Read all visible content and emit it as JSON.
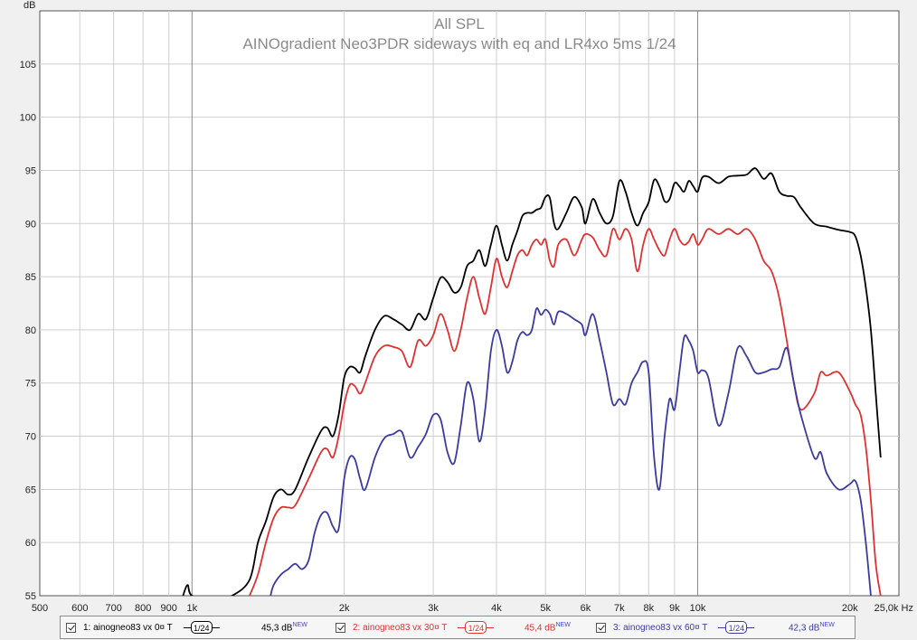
{
  "chart_data": {
    "type": "line",
    "title": "All SPL",
    "subtitle": "AINOgradient Neo3PDR sideways with eq and LR4xo 5ms 1/24",
    "ylabel": "dB",
    "xlabel": "Hz",
    "xscale": "log",
    "xlim": [
      500,
      25000
    ],
    "ylim": [
      55,
      110
    ],
    "grid": true,
    "y_ticks": [
      "105",
      "100",
      "95",
      "90",
      "85",
      "80",
      "75",
      "70",
      "65",
      "60",
      "55"
    ],
    "x_ticks": [
      {
        "v": 500,
        "label": "500"
      },
      {
        "v": 600,
        "label": "600"
      },
      {
        "v": 700,
        "label": "700"
      },
      {
        "v": 800,
        "label": "800"
      },
      {
        "v": 900,
        "label": "900"
      },
      {
        "v": 1000,
        "label": "1k"
      },
      {
        "v": 2000,
        "label": "2k"
      },
      {
        "v": 3000,
        "label": "3k"
      },
      {
        "v": 4000,
        "label": "4k"
      },
      {
        "v": 5000,
        "label": "5k"
      },
      {
        "v": 6000,
        "label": "6k"
      },
      {
        "v": 7000,
        "label": "7k"
      },
      {
        "v": 8000,
        "label": "8k"
      },
      {
        "v": 9000,
        "label": "9k"
      },
      {
        "v": 10000,
        "label": "10k"
      },
      {
        "v": 20000,
        "label": "20k"
      },
      {
        "v": 25000,
        "label": "25,0k Hz"
      }
    ],
    "series": [
      {
        "name": "1: ainogneo83 vx 0¤ T",
        "color": "#000000",
        "smoothing": "1/24",
        "level": "45,3 dB",
        "points": [
          [
            960,
            55
          ],
          [
            980,
            56
          ],
          [
            1000,
            55
          ],
          [
            1100,
            54.5
          ],
          [
            1200,
            55
          ],
          [
            1300,
            56.5
          ],
          [
            1350,
            60
          ],
          [
            1400,
            62
          ],
          [
            1450,
            64.3
          ],
          [
            1500,
            65
          ],
          [
            1550,
            64.5
          ],
          [
            1600,
            65
          ],
          [
            1700,
            68
          ],
          [
            1800,
            70.5
          ],
          [
            1850,
            70.8
          ],
          [
            1900,
            70
          ],
          [
            1950,
            72
          ],
          [
            2000,
            75.5
          ],
          [
            2050,
            76.5
          ],
          [
            2100,
            76.4
          ],
          [
            2150,
            76
          ],
          [
            2200,
            77.5
          ],
          [
            2300,
            80
          ],
          [
            2400,
            81.3
          ],
          [
            2500,
            81
          ],
          [
            2600,
            80.5
          ],
          [
            2700,
            80
          ],
          [
            2800,
            81.5
          ],
          [
            2900,
            81
          ],
          [
            3000,
            83
          ],
          [
            3100,
            84.9
          ],
          [
            3200,
            84.5
          ],
          [
            3300,
            83.5
          ],
          [
            3400,
            84
          ],
          [
            3500,
            86
          ],
          [
            3600,
            86.5
          ],
          [
            3700,
            87.5
          ],
          [
            3800,
            86
          ],
          [
            3900,
            88
          ],
          [
            4000,
            89.8
          ],
          [
            4100,
            88
          ],
          [
            4200,
            86.5
          ],
          [
            4300,
            88
          ],
          [
            4400,
            89.3
          ],
          [
            4500,
            90.7
          ],
          [
            4600,
            91
          ],
          [
            4700,
            91
          ],
          [
            4800,
            91.3
          ],
          [
            4900,
            91.5
          ],
          [
            5000,
            92.5
          ],
          [
            5100,
            92.4
          ],
          [
            5200,
            90
          ],
          [
            5300,
            89.5
          ],
          [
            5500,
            91
          ],
          [
            5700,
            92.5
          ],
          [
            5900,
            91.5
          ],
          [
            6000,
            90
          ],
          [
            6200,
            92.3
          ],
          [
            6400,
            91
          ],
          [
            6600,
            90
          ],
          [
            6800,
            90.7
          ],
          [
            7000,
            94
          ],
          [
            7200,
            93
          ],
          [
            7400,
            91
          ],
          [
            7600,
            89.8
          ],
          [
            7800,
            91
          ],
          [
            8000,
            92
          ],
          [
            8200,
            94.1
          ],
          [
            8400,
            93.5
          ],
          [
            8600,
            92.1
          ],
          [
            8800,
            92.3
          ],
          [
            9000,
            93.8
          ],
          [
            9200,
            93.5
          ],
          [
            9400,
            93
          ],
          [
            9600,
            94
          ],
          [
            9800,
            93.5
          ],
          [
            10000,
            93
          ],
          [
            10200,
            94.3
          ],
          [
            10500,
            94.4
          ],
          [
            11000,
            93.8
          ],
          [
            11500,
            94.4
          ],
          [
            12000,
            94.5
          ],
          [
            12500,
            94.6
          ],
          [
            13000,
            95.2
          ],
          [
            13500,
            94.2
          ],
          [
            14000,
            94.7
          ],
          [
            14500,
            93
          ],
          [
            15000,
            92.6
          ],
          [
            15500,
            92.5
          ],
          [
            16000,
            91.5
          ],
          [
            17000,
            90
          ],
          [
            18000,
            89.7
          ],
          [
            19000,
            89.4
          ],
          [
            20000,
            89.2
          ],
          [
            20500,
            88.8
          ],
          [
            21000,
            87
          ],
          [
            21500,
            84
          ],
          [
            22000,
            80
          ],
          [
            22500,
            74
          ],
          [
            23000,
            68
          ]
        ]
      },
      {
        "name": "2: ainogneo83 vx 30¤ T",
        "color": "#e03030",
        "smoothing": "1/24",
        "level": "45,4 dB",
        "points": [
          [
            1300,
            55
          ],
          [
            1350,
            57
          ],
          [
            1400,
            60
          ],
          [
            1450,
            62.3
          ],
          [
            1500,
            63.3
          ],
          [
            1550,
            63.3
          ],
          [
            1600,
            63.5
          ],
          [
            1700,
            66
          ],
          [
            1800,
            68.5
          ],
          [
            1850,
            68.8
          ],
          [
            1900,
            68
          ],
          [
            1950,
            70
          ],
          [
            2000,
            73
          ],
          [
            2050,
            74.8
          ],
          [
            2100,
            74.7
          ],
          [
            2150,
            74
          ],
          [
            2200,
            75
          ],
          [
            2300,
            77.5
          ],
          [
            2400,
            78.5
          ],
          [
            2500,
            78.4
          ],
          [
            2600,
            78
          ],
          [
            2700,
            76.5
          ],
          [
            2800,
            79
          ],
          [
            2900,
            78.5
          ],
          [
            3000,
            79.5
          ],
          [
            3100,
            81.5
          ],
          [
            3200,
            80
          ],
          [
            3300,
            78
          ],
          [
            3400,
            80
          ],
          [
            3500,
            83
          ],
          [
            3600,
            85
          ],
          [
            3700,
            83
          ],
          [
            3800,
            81.5
          ],
          [
            3900,
            84
          ],
          [
            4000,
            86.7
          ],
          [
            4100,
            85
          ],
          [
            4200,
            84
          ],
          [
            4300,
            85.5
          ],
          [
            4400,
            87
          ],
          [
            4500,
            87.5
          ],
          [
            4600,
            87
          ],
          [
            4700,
            88
          ],
          [
            4800,
            88.5
          ],
          [
            4900,
            88
          ],
          [
            5000,
            88.5
          ],
          [
            5100,
            86.5
          ],
          [
            5200,
            86
          ],
          [
            5300,
            88
          ],
          [
            5500,
            88.5
          ],
          [
            5700,
            87
          ],
          [
            5900,
            88.5
          ],
          [
            6000,
            89
          ],
          [
            6200,
            88.7
          ],
          [
            6400,
            87.5
          ],
          [
            6600,
            87
          ],
          [
            6800,
            89.5
          ],
          [
            7000,
            88.5
          ],
          [
            7200,
            89.5
          ],
          [
            7400,
            88.5
          ],
          [
            7600,
            85.5
          ],
          [
            7800,
            88
          ],
          [
            8000,
            89.5
          ],
          [
            8200,
            88.5
          ],
          [
            8400,
            87.5
          ],
          [
            8600,
            87
          ],
          [
            8800,
            88.5
          ],
          [
            9000,
            89.5
          ],
          [
            9200,
            88.5
          ],
          [
            9400,
            88
          ],
          [
            9600,
            88.3
          ],
          [
            9800,
            89
          ],
          [
            10000,
            88
          ],
          [
            10200,
            88.5
          ],
          [
            10500,
            89.5
          ],
          [
            11000,
            89
          ],
          [
            11500,
            89.5
          ],
          [
            12000,
            89
          ],
          [
            12500,
            89.5
          ],
          [
            13000,
            88.5
          ],
          [
            13500,
            86.5
          ],
          [
            14000,
            85.5
          ],
          [
            14500,
            83
          ],
          [
            15000,
            79
          ],
          [
            15500,
            75
          ],
          [
            16000,
            72.5
          ],
          [
            17000,
            74
          ],
          [
            17500,
            76
          ],
          [
            18000,
            75.7
          ],
          [
            19000,
            76
          ],
          [
            20000,
            74.2
          ],
          [
            20500,
            73
          ],
          [
            21000,
            72
          ],
          [
            21500,
            69
          ],
          [
            22000,
            64
          ],
          [
            22500,
            58
          ],
          [
            23000,
            55
          ]
        ]
      },
      {
        "name": "3: ainogneo83 vx 60¤ T",
        "color": "#3a3aa0",
        "smoothing": "1/24",
        "level": "42,3 dB",
        "points": [
          [
            1430,
            55
          ],
          [
            1450,
            56
          ],
          [
            1500,
            57
          ],
          [
            1550,
            57.5
          ],
          [
            1600,
            58
          ],
          [
            1650,
            57.5
          ],
          [
            1700,
            58.3
          ],
          [
            1750,
            61
          ],
          [
            1800,
            62.6
          ],
          [
            1850,
            62.8
          ],
          [
            1900,
            61.5
          ],
          [
            1950,
            61.3
          ],
          [
            2000,
            66
          ],
          [
            2050,
            68
          ],
          [
            2100,
            67.8
          ],
          [
            2150,
            66
          ],
          [
            2200,
            65
          ],
          [
            2300,
            68
          ],
          [
            2400,
            69.8
          ],
          [
            2500,
            70.2
          ],
          [
            2600,
            70.4
          ],
          [
            2700,
            68
          ],
          [
            2800,
            69
          ],
          [
            2900,
            70.2
          ],
          [
            3000,
            72
          ],
          [
            3100,
            71.6
          ],
          [
            3200,
            68.5
          ],
          [
            3300,
            67.5
          ],
          [
            3400,
            71
          ],
          [
            3500,
            75
          ],
          [
            3600,
            73.5
          ],
          [
            3700,
            69.5
          ],
          [
            3800,
            72.5
          ],
          [
            3900,
            78
          ],
          [
            4000,
            80
          ],
          [
            4100,
            78.5
          ],
          [
            4200,
            76
          ],
          [
            4300,
            77
          ],
          [
            4400,
            79
          ],
          [
            4500,
            79.8
          ],
          [
            4600,
            79.5
          ],
          [
            4700,
            80
          ],
          [
            4800,
            82
          ],
          [
            4900,
            81.4
          ],
          [
            5000,
            81.9
          ],
          [
            5100,
            81.5
          ],
          [
            5200,
            80.5
          ],
          [
            5300,
            81.7
          ],
          [
            5500,
            81.5
          ],
          [
            5700,
            81
          ],
          [
            5900,
            80.5
          ],
          [
            6000,
            79.5
          ],
          [
            6200,
            81.5
          ],
          [
            6400,
            79
          ],
          [
            6600,
            76
          ],
          [
            6800,
            73
          ],
          [
            7000,
            73.5
          ],
          [
            7200,
            73
          ],
          [
            7400,
            75
          ],
          [
            7600,
            76
          ],
          [
            7800,
            77
          ],
          [
            8000,
            76
          ],
          [
            8200,
            68
          ],
          [
            8400,
            65
          ],
          [
            8600,
            70
          ],
          [
            8800,
            73.5
          ],
          [
            9000,
            72.5
          ],
          [
            9200,
            76
          ],
          [
            9400,
            79.3
          ],
          [
            9600,
            79
          ],
          [
            9800,
            78
          ],
          [
            10000,
            76
          ],
          [
            10200,
            76.2
          ],
          [
            10500,
            75.5
          ],
          [
            11000,
            71
          ],
          [
            11500,
            74
          ],
          [
            12000,
            78.3
          ],
          [
            12500,
            77.5
          ],
          [
            13000,
            76
          ],
          [
            13500,
            76
          ],
          [
            14000,
            76.3
          ],
          [
            14500,
            76.5
          ],
          [
            15000,
            78.3
          ],
          [
            15500,
            75
          ],
          [
            16000,
            72
          ],
          [
            17000,
            68
          ],
          [
            17500,
            68.5
          ],
          [
            18000,
            66.5
          ],
          [
            19000,
            65
          ],
          [
            20000,
            65.5
          ],
          [
            20500,
            65.8
          ],
          [
            21000,
            64
          ],
          [
            21500,
            60
          ],
          [
            22000,
            55
          ]
        ]
      }
    ]
  },
  "legend": {
    "items": [
      {
        "name": "1: ainogneo83 vx 0¤ T",
        "smoothing": "1/24",
        "level": "45,3 dB",
        "new": "NEW",
        "color": "#000000"
      },
      {
        "name": "2: ainogneo83 vx 30¤ T",
        "smoothing": "1/24",
        "level": "45,4 dB",
        "new": "NEW",
        "color": "#e03030"
      },
      {
        "name": "3: ainogneo83 vx 60¤ T",
        "smoothing": "1/24",
        "level": "42,3 dB",
        "new": "NEW",
        "color": "#3a3aa0"
      }
    ]
  }
}
